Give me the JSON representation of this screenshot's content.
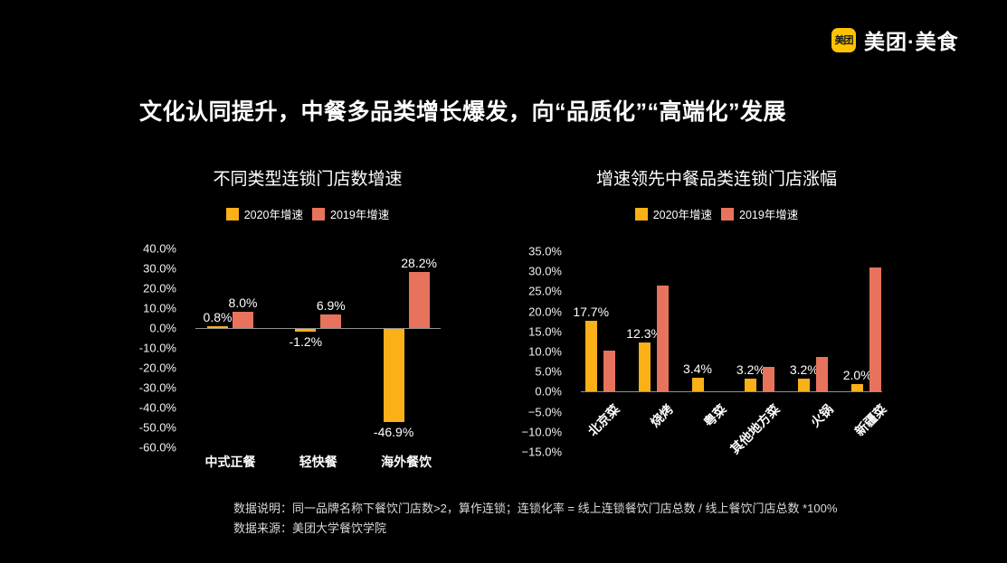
{
  "page": {
    "background": "#000000"
  },
  "logo": {
    "badge_text": "美团",
    "badge_color": "#FFC300",
    "brand_text": "美团·美食"
  },
  "slide_title": "文化认同提升，中餐多品类增长爆发，向“品质化”“高端化”发展",
  "colors": {
    "series_2020": "#FBB017",
    "series_2019": "#E8735C",
    "axis_line": "#919191",
    "text": "#FFFFFF",
    "footnote_text": "#D9D9D9"
  },
  "chart_data": [
    {
      "type": "bar",
      "title": "不同类型连锁门店数增速",
      "categories": [
        "中式正餐",
        "轻快餐",
        "海外餐饮"
      ],
      "series": [
        {
          "name": "2020年增速",
          "color": "#FBB017",
          "values": [
            0.8,
            -1.2,
            -46.9
          ],
          "data_labels": [
            "0.8%",
            "-1.2%",
            "-46.9%"
          ]
        },
        {
          "name": "2019年增速",
          "color": "#E8735C",
          "values": [
            8.0,
            6.9,
            28.2
          ],
          "data_labels": [
            "8.0%",
            "6.9%",
            "28.2%"
          ]
        }
      ],
      "ylim": [
        -60,
        40
      ],
      "ytick_step": 10,
      "ytick_labels": [
        "40.0%",
        "30.0%",
        "20.0%",
        "10.0%",
        "0.0%",
        "-10.0%",
        "-20.0%",
        "-30.0%",
        "-40.0%",
        "-50.0%",
        "-60.0%"
      ],
      "legend_position": "top",
      "grid": false,
      "category_rotation": 0
    },
    {
      "type": "bar",
      "title": "增速领先中餐品类连锁门店涨幅",
      "categories": [
        "北京菜",
        "烧烤",
        "粤菜",
        "其他地方菜",
        "火锅",
        "新疆菜"
      ],
      "series": [
        {
          "name": "2020年增速",
          "color": "#FBB017",
          "values": [
            17.7,
            12.3,
            3.4,
            3.2,
            3.2,
            2.0
          ],
          "data_labels": [
            "17.7%",
            "12.3%",
            "3.4%",
            "3.2%",
            "3.2%",
            "2.0%"
          ]
        },
        {
          "name": "2019年增速",
          "color": "#E8735C",
          "values": [
            10.2,
            26.5,
            null,
            6.1,
            8.6,
            31.0
          ],
          "data_labels": [
            "",
            "",
            "",
            "",
            "",
            ""
          ]
        }
      ],
      "ylim": [
        -15,
        35
      ],
      "ytick_step": 5,
      "ytick_labels": [
        "35.0%",
        "30.0%",
        "25.0%",
        "20.0%",
        "15.0%",
        "10.0%",
        "5.0%",
        "0.0%",
        "−5.0%",
        "−10.0%",
        "−15.0%"
      ],
      "legend_position": "top",
      "grid": false,
      "category_rotation": 45
    }
  ],
  "footnote": {
    "line1": "数据说明：同一品牌名称下餐饮门店数>2，算作连锁；连锁化率 = 线上连锁餐饮门店总数 / 线上餐饮门店总数 *100%",
    "line2": "数据来源：美团大学餐饮学院"
  }
}
